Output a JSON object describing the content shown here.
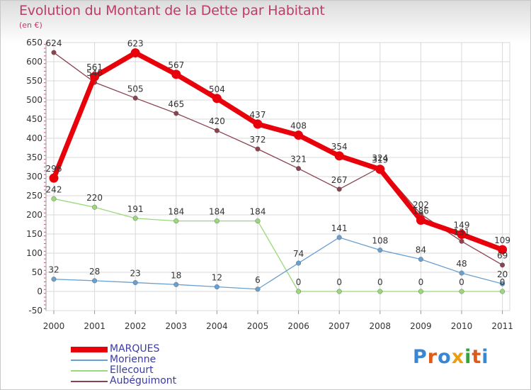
{
  "title": "Evolution du Montant de la Dette par Habitant",
  "subtitle": "(en €)",
  "logo": "Proxiti",
  "chart_data": {
    "type": "line",
    "title": "Evolution du Montant de la Dette par Habitant",
    "subtitle": "(en €)",
    "x": [
      "2000",
      "2001",
      "2002",
      "2003",
      "2004",
      "2005",
      "2006",
      "2007",
      "2008",
      "2009",
      "2010",
      "2011"
    ],
    "yticks": [
      -50,
      0,
      50,
      100,
      150,
      200,
      250,
      300,
      350,
      400,
      450,
      500,
      550,
      600,
      650
    ],
    "ylim": [
      -50,
      650
    ],
    "grid": true,
    "legend_position": "bottom-left",
    "series": [
      {
        "name": "MARQUES",
        "color": "#e8000b",
        "values": [
          296,
          561,
          623,
          567,
          504,
          437,
          408,
          354,
          319,
          186,
          149,
          109
        ]
      },
      {
        "name": "Morienne",
        "color": "#6aa0d0",
        "values": [
          32,
          28,
          23,
          18,
          12,
          6,
          74,
          141,
          108,
          84,
          48,
          20
        ]
      },
      {
        "name": "Ellecourt",
        "color": "#9ad97a",
        "values": [
          242,
          220,
          191,
          184,
          184,
          184,
          0,
          0,
          0,
          0,
          0,
          0
        ]
      },
      {
        "name": "Aubéguimont",
        "color": "#8a4450",
        "values": [
          624,
          546,
          505,
          465,
          420,
          372,
          321,
          267,
          324,
          202,
          131,
          69
        ]
      }
    ]
  }
}
